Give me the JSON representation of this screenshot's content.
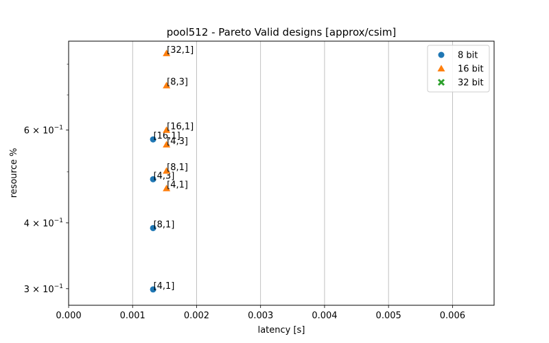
{
  "chart_data": {
    "type": "scatter",
    "title": "pool512 - Pareto Valid designs [approx/csim]",
    "xlabel": "latency [s]",
    "ylabel": "resource %",
    "xlim": [
      0,
      0.00665
    ],
    "ylim": [
      0.279,
      0.885
    ],
    "yscale": "log",
    "grid": "x-major",
    "legend_position": "top-right",
    "x_ticks": [
      {
        "value": 0.0,
        "label": "0.000"
      },
      {
        "value": 0.001,
        "label": "0.001"
      },
      {
        "value": 0.002,
        "label": "0.002"
      },
      {
        "value": 0.003,
        "label": "0.003"
      },
      {
        "value": 0.004,
        "label": "0.004"
      },
      {
        "value": 0.005,
        "label": "0.005"
      },
      {
        "value": 0.006,
        "label": "0.006"
      }
    ],
    "y_ticks": [
      {
        "value": 0.3,
        "label_base": "3 × 10",
        "label_exp": "−1"
      },
      {
        "value": 0.4,
        "label_base": "4 × 10",
        "label_exp": "−1"
      },
      {
        "value": 0.6,
        "label_base": "6 × 10",
        "label_exp": "−1"
      }
    ],
    "series": [
      {
        "name": "8 bit",
        "color": "#1f77b4",
        "marker": "circle",
        "points": [
          {
            "x": 0.00132,
            "y": 0.299,
            "label": "[4,1]"
          },
          {
            "x": 0.00132,
            "y": 0.391,
            "label": "[8,1]"
          },
          {
            "x": 0.00132,
            "y": 0.484,
            "label": "[4,3]"
          },
          {
            "x": 0.00132,
            "y": 0.576,
            "label": "[16,1]"
          }
        ]
      },
      {
        "name": "16 bit",
        "color": "#ff7f0e",
        "marker": "triangle",
        "points": [
          {
            "x": 0.00153,
            "y": 0.465,
            "label": "[4,1]"
          },
          {
            "x": 0.00153,
            "y": 0.502,
            "label": "[8,1]"
          },
          {
            "x": 0.00153,
            "y": 0.563,
            "label": "[4,3]"
          },
          {
            "x": 0.00153,
            "y": 0.6,
            "label": "[16,1]"
          },
          {
            "x": 0.00153,
            "y": 0.729,
            "label": "[8,3]"
          },
          {
            "x": 0.00153,
            "y": 0.839,
            "label": "[32,1]"
          }
        ]
      },
      {
        "name": "32 bit",
        "color": "#2ca02c",
        "marker": "x",
        "points": []
      }
    ]
  }
}
